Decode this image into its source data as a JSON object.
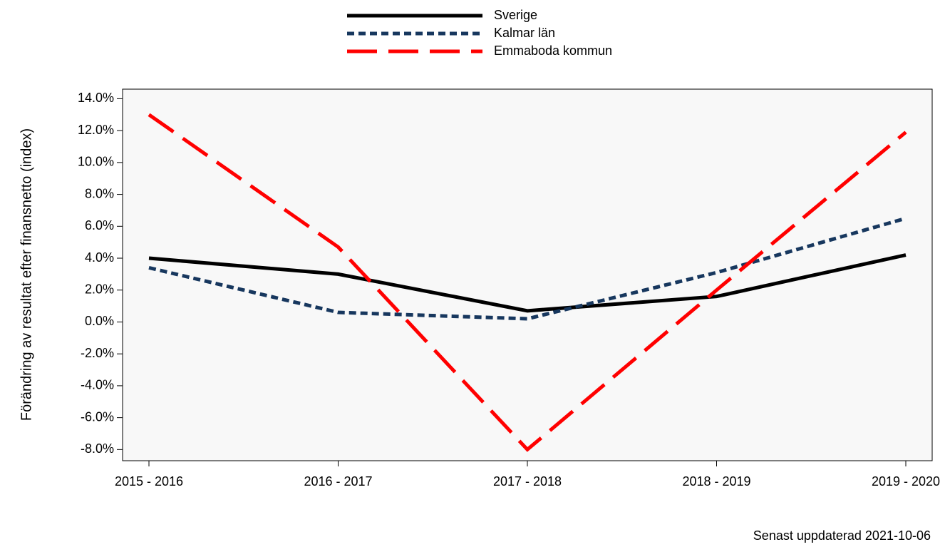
{
  "chart_data": {
    "type": "line",
    "y_label": "Förändring av resultat efter finansnetto (index)",
    "footnote": "Senast uppdaterad 2021-10-06",
    "categories": [
      "2015 - 2016",
      "2016 - 2017",
      "2017 - 2018",
      "2018 - 2019",
      "2019 - 2020"
    ],
    "series": [
      {
        "name": "Sverige",
        "color": "#000000",
        "dash": "solid",
        "values": [
          4.0,
          3.0,
          0.7,
          1.6,
          4.2
        ]
      },
      {
        "name": "Kalmar län",
        "color": "#17375e",
        "dash": "dotted",
        "values": [
          3.4,
          0.6,
          0.2,
          3.1,
          6.5
        ]
      },
      {
        "name": "Emmaboda kommun",
        "color": "#ff0000",
        "dash": "dashed",
        "values": [
          13.0,
          4.7,
          -8.0,
          2.0,
          11.9
        ]
      }
    ],
    "ylim": [
      -8.7,
      14.6
    ],
    "yticks": [
      {
        "value": -8,
        "label": "-8.0%"
      },
      {
        "value": -6,
        "label": "-6.0%"
      },
      {
        "value": -4,
        "label": "-4.0%"
      },
      {
        "value": -2,
        "label": "-2.0%"
      },
      {
        "value": 0,
        "label": "0.0%"
      },
      {
        "value": 2,
        "label": "2.0%"
      },
      {
        "value": 4,
        "label": "4.0%"
      },
      {
        "value": 6,
        "label": "6.0%"
      },
      {
        "value": 8,
        "label": "8.0%"
      },
      {
        "value": 10,
        "label": "10.0%"
      },
      {
        "value": 12,
        "label": "12.0%"
      },
      {
        "value": 14,
        "label": "14.0%"
      }
    ],
    "grid": false,
    "legend": "top"
  }
}
